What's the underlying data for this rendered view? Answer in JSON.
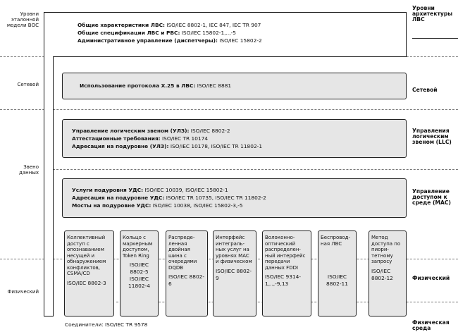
{
  "left_labels": {
    "osi_levels": "Уровни эталонной модели ВОС",
    "network": "Сетевой",
    "data_link": "Звено данных",
    "physical": "Физический"
  },
  "right_labels": {
    "lan_levels": "Уровни архитектуры ЛВС",
    "network": "Сетевой",
    "llc": "Управления логическим звеном (LLC)",
    "mac": "Управление доступом к среде (MAC)",
    "physical": "Физический",
    "medium": "Физическая среда"
  },
  "general": [
    {
      "k": "Общие характеристики ЛВС:",
      "v": " ISO/IEC 8802-1, IEC 847, IEC TR 907"
    },
    {
      "k": "Общие спецификации ЛВС и РВС:",
      "v": " ISO/IEC 15802-1,..,-5"
    },
    {
      "k": "Административное управление (диспетчеры):",
      "v": " ISO/IEC 15802-2"
    }
  ],
  "x25": {
    "k": "Использование протокола X.25 в ЛВС:",
    "v": "  ISO/IEC 8881"
  },
  "llc": [
    {
      "k": "Управление логическим звеном (УЛЗ):",
      "v": " ISO/IEC 8802-2"
    },
    {
      "k": "Аттестационные требования:",
      "v": " ISO/IEC TR 10174"
    },
    {
      "k": "Адресация на подуровне (УЛЗ):",
      "v": " ISO/IEC 10178,  ISO/IEC TR 11802-1"
    }
  ],
  "mac": [
    {
      "k": "Услуги подуровня УДС:",
      "v": " ISO/IEC 10039, ISO/IEC 15802-1"
    },
    {
      "k": "Адресация на подуровне УДС:",
      "v": " ISO/IEC TR 10735, ISO/IEC TR 11802-2"
    },
    {
      "k": "Мосты на подуровне УДС:",
      "v": " ISO/IEC 10038, ISO/IEC 15802-3,-5"
    }
  ],
  "physical": [
    {
      "t": "Коллективный доступ с опознаванием несущей и обнаружением конфликтов, CSMA/CD",
      "n": "ISO/IEC 8802-3"
    },
    {
      "t": "Кольцо с маркерным доступом, Token Ring",
      "n": "ISO/IEC 8802-5 ISO/IEC 11802-4"
    },
    {
      "t": "Распреде-ленная двойная шина с очередями DQDB",
      "n": "ISO/IEC 8802-6"
    },
    {
      "t": "Интерфейс интеграль-ных услуг на уровнях MAC и физическом",
      "n": "ISO/IEC 8802-9"
    },
    {
      "t": "Волоконно-оптический распределен-ный интерфейс передачи данных FDDI",
      "n": "ISO/IEC 9314-1,..,-9,13"
    },
    {
      "t": "Беспровод-ная ЛВС",
      "n": "ISO/IEC 8802-11"
    },
    {
      "t": "Метод доступа по пиори-тетному запросу",
      "n": "ISO/IEC 8802-12"
    }
  ],
  "connectors": "Соединители: ISO/IEC TR 9578"
}
